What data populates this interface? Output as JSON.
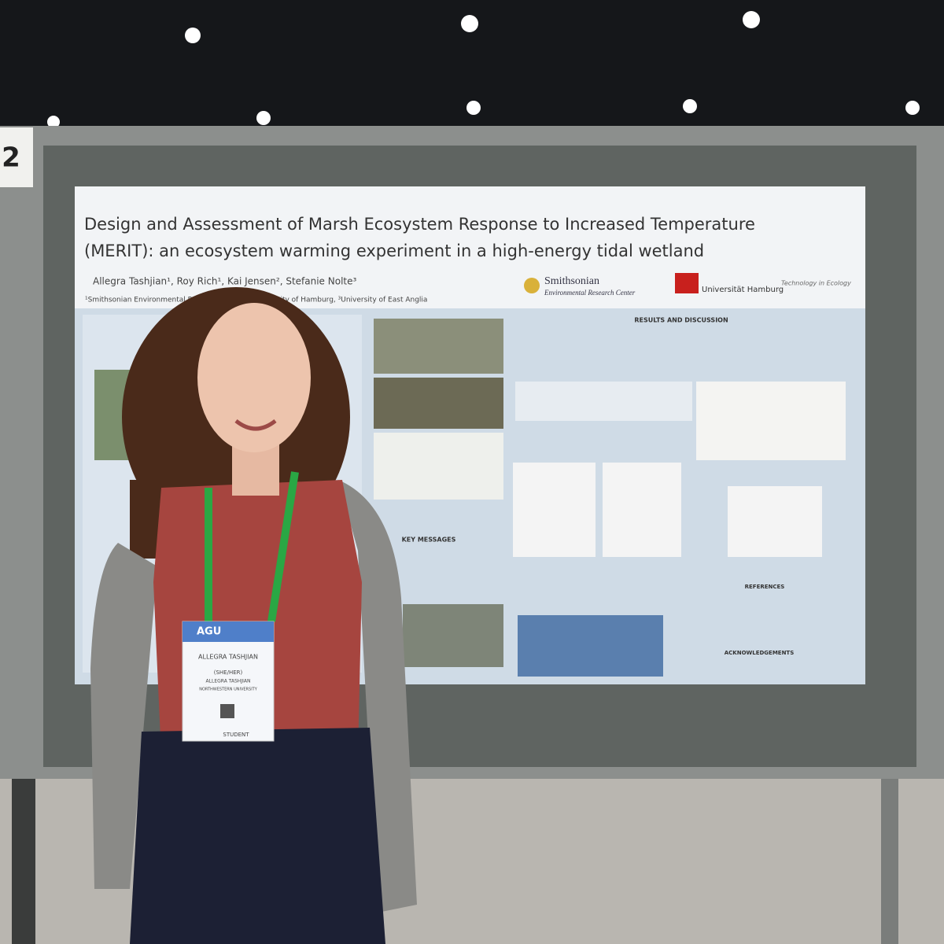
{
  "board_number": "2",
  "poster": {
    "title_lines": [
      "Design and Assessment of Marsh Ecosystem Response to Increased Temperature",
      "(MERIT): an ecosystem warming experiment in a high-energy tidal wetland"
    ],
    "authors": "Allegra Tashjian¹, Roy Rich¹, Kai Jensen², Stefanie Nolte³",
    "affiliations": "¹Smithsonian Environmental Research Center, ²University of Hamburg, ³University of East Anglia",
    "logos": [
      "Smithsonian",
      "Environmental Research Center",
      "Universität Hamburg",
      "Technology in Ecology"
    ],
    "sections": [
      "RESULTS AND DISCUSSION",
      "KEY MESSAGES",
      "REFERENCES",
      "ACKNOWLEDGEMENTS"
    ]
  },
  "badge": {
    "org": "AGU",
    "name": "ALLEGRA TASHJIAN",
    "pronouns": "(SHE/HER)",
    "full_name": "ALLEGRA TASHJIAN",
    "affiliation": "NORTHWESTERN UNIVERSITY",
    "type": "STUDENT"
  }
}
